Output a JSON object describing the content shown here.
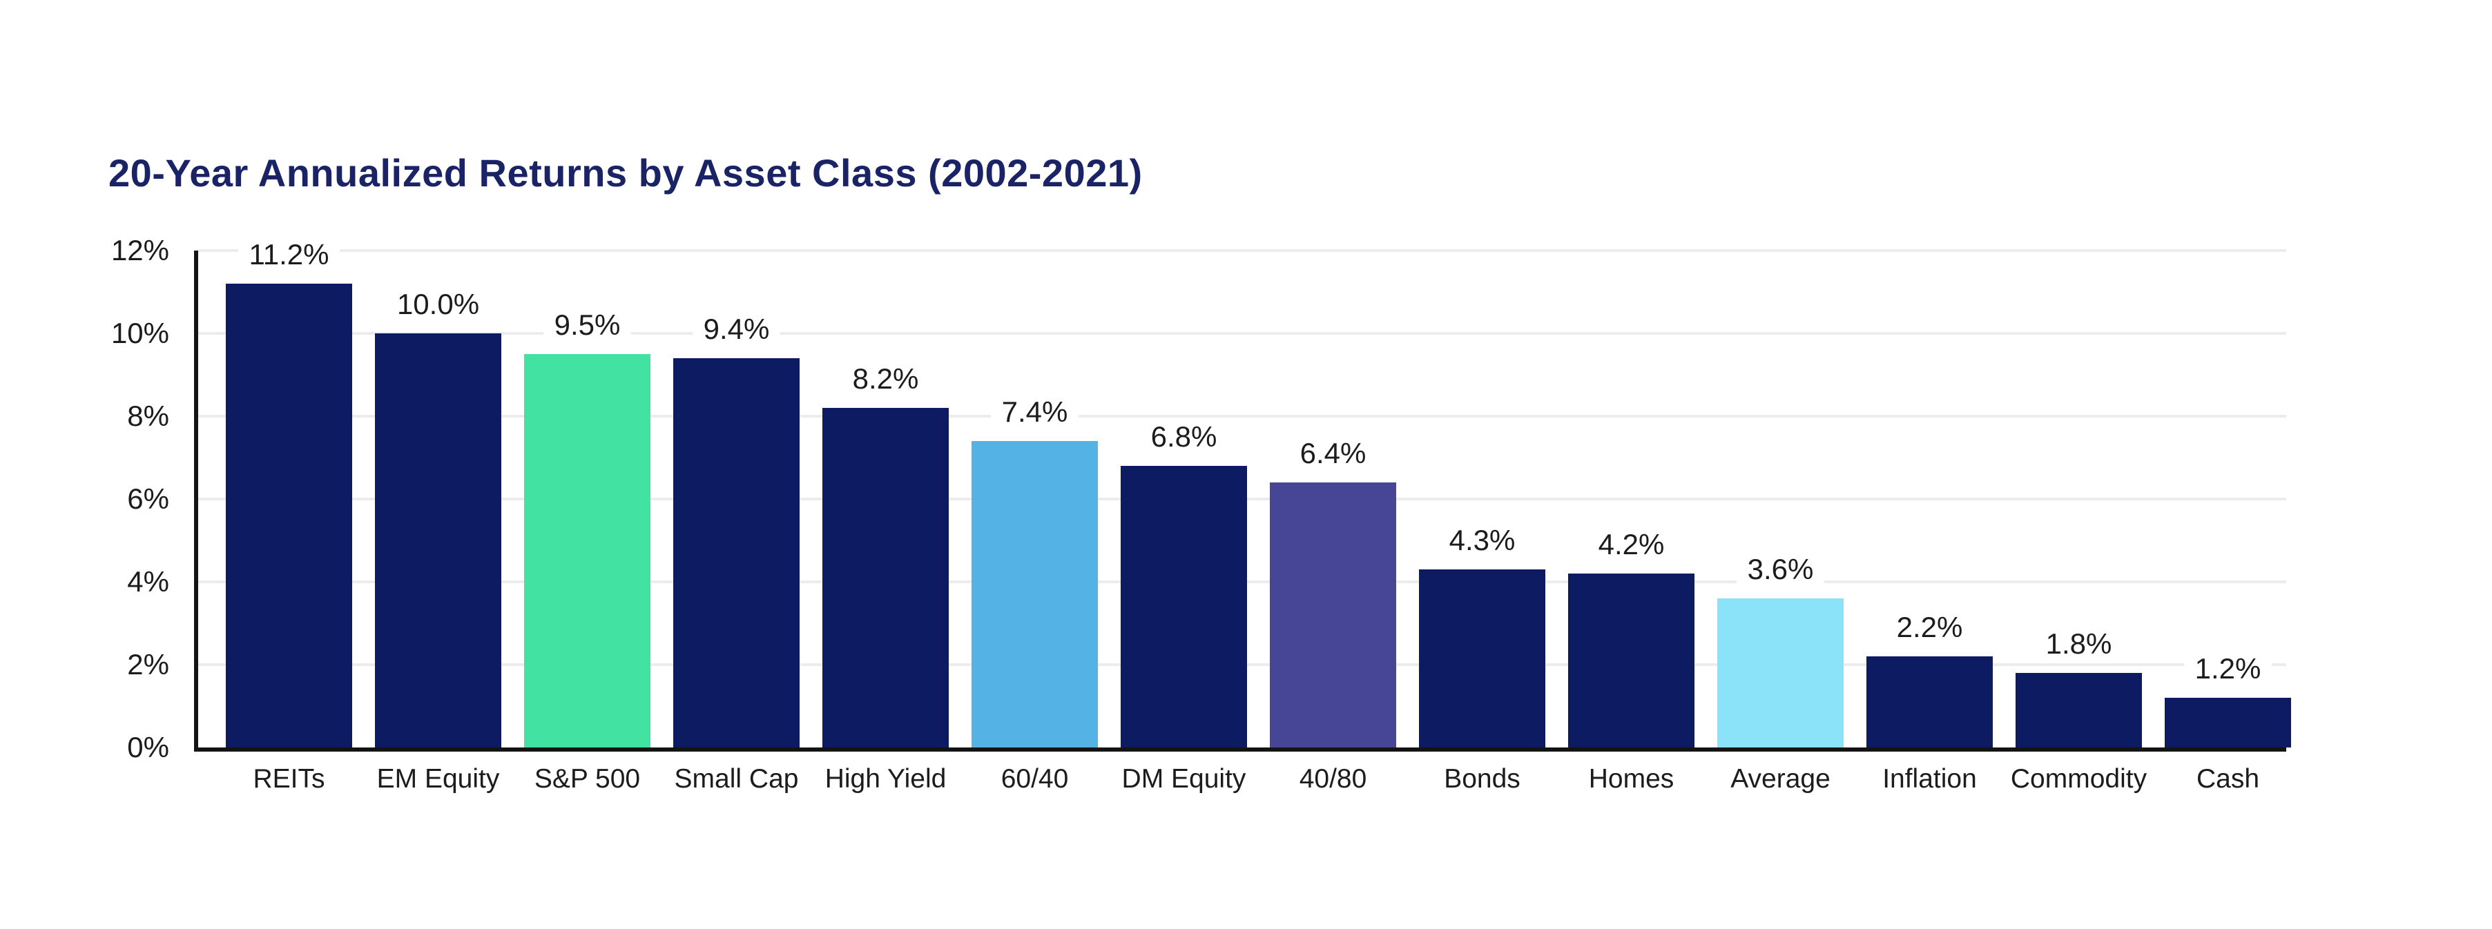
{
  "header": {
    "title": "20-Year Annualized Returns by Asset Class (2002-2021)"
  },
  "colors": {
    "title_text": "#1A2365",
    "default_bar_navy": "#0D1C62",
    "highlight_green": "#41E2A2",
    "highlight_sky_blue": "#55B2E4",
    "highlight_purple": "#474596",
    "highlight_light_cyan": "#8BE3FA",
    "axis_line": "#141414",
    "gridline": "#ECECEC",
    "label_text": "#1c1c1c",
    "background": "#ffffff"
  },
  "chart_data": {
    "type": "bar",
    "title": "20-Year Annualized Returns by Asset Class (2002-2021)",
    "xlabel": "",
    "ylabel": "",
    "ylim": [
      0,
      12
    ],
    "grid": "horizontal",
    "legend": "none",
    "categories": [
      "REITs",
      "EM Equity",
      "S&P 500",
      "Small Cap",
      "High Yield",
      "60/40",
      "DM Equity",
      "40/80",
      "Bonds",
      "Homes",
      "Average",
      "Inflation",
      "Commodity",
      "Cash"
    ],
    "values": [
      11.2,
      10.0,
      9.5,
      9.4,
      8.2,
      7.4,
      6.8,
      6.4,
      4.3,
      4.2,
      3.6,
      2.2,
      1.8,
      1.2
    ],
    "value_labels": [
      "11.2%",
      "10.0%",
      "9.5%",
      "9.4%",
      "8.2%",
      "7.4%",
      "6.8%",
      "6.4%",
      "4.3%",
      "4.2%",
      "3.6%",
      "2.2%",
      "1.8%",
      "1.2%"
    ],
    "bar_colors": [
      "#0D1C62",
      "#0D1C62",
      "#41E2A2",
      "#0D1C62",
      "#0D1C62",
      "#55B2E4",
      "#0D1C62",
      "#474596",
      "#0D1C62",
      "#0D1C62",
      "#8BE3FA",
      "#0D1C62",
      "#0D1C62",
      "#0D1C62"
    ],
    "yticks": [
      {
        "label": "12%",
        "value": 12
      },
      {
        "label": "10%",
        "value": 10
      },
      {
        "label": "8%",
        "value": 8
      },
      {
        "label": "6%",
        "value": 6
      },
      {
        "label": "4%",
        "value": 4
      },
      {
        "label": "2%",
        "value": 2
      },
      {
        "label": "0%",
        "value": 0
      }
    ]
  }
}
